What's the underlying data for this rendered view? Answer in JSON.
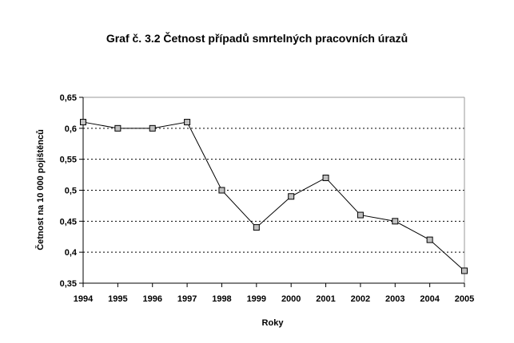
{
  "chart_data": {
    "type": "line",
    "title": "Graf č. 3.2 Četnost případů smrtelných pracovních úrazů",
    "xlabel": "Roky",
    "ylabel": "Četnost na 10 000 pojištěnců",
    "categories": [
      "1994",
      "1995",
      "1996",
      "1997",
      "1998",
      "1999",
      "2000",
      "2001",
      "2002",
      "2003",
      "2004",
      "2005"
    ],
    "values": [
      0.61,
      0.6,
      0.6,
      0.61,
      0.5,
      0.44,
      0.49,
      0.52,
      0.46,
      0.45,
      0.42,
      0.37
    ],
    "ylim": [
      0.35,
      0.65
    ],
    "yticks": [
      0.35,
      0.4,
      0.45,
      0.5,
      0.55,
      0.6,
      0.65
    ],
    "ytick_labels": [
      "0,35",
      "0,4",
      "0,45",
      "0,5",
      "0,55",
      "0,6",
      "0,65"
    ],
    "grid": "horizontal dotted",
    "legend": "none",
    "colors": {
      "line": "#000000",
      "marker_fill": "#c0c0c0",
      "grid": "#000000"
    }
  }
}
